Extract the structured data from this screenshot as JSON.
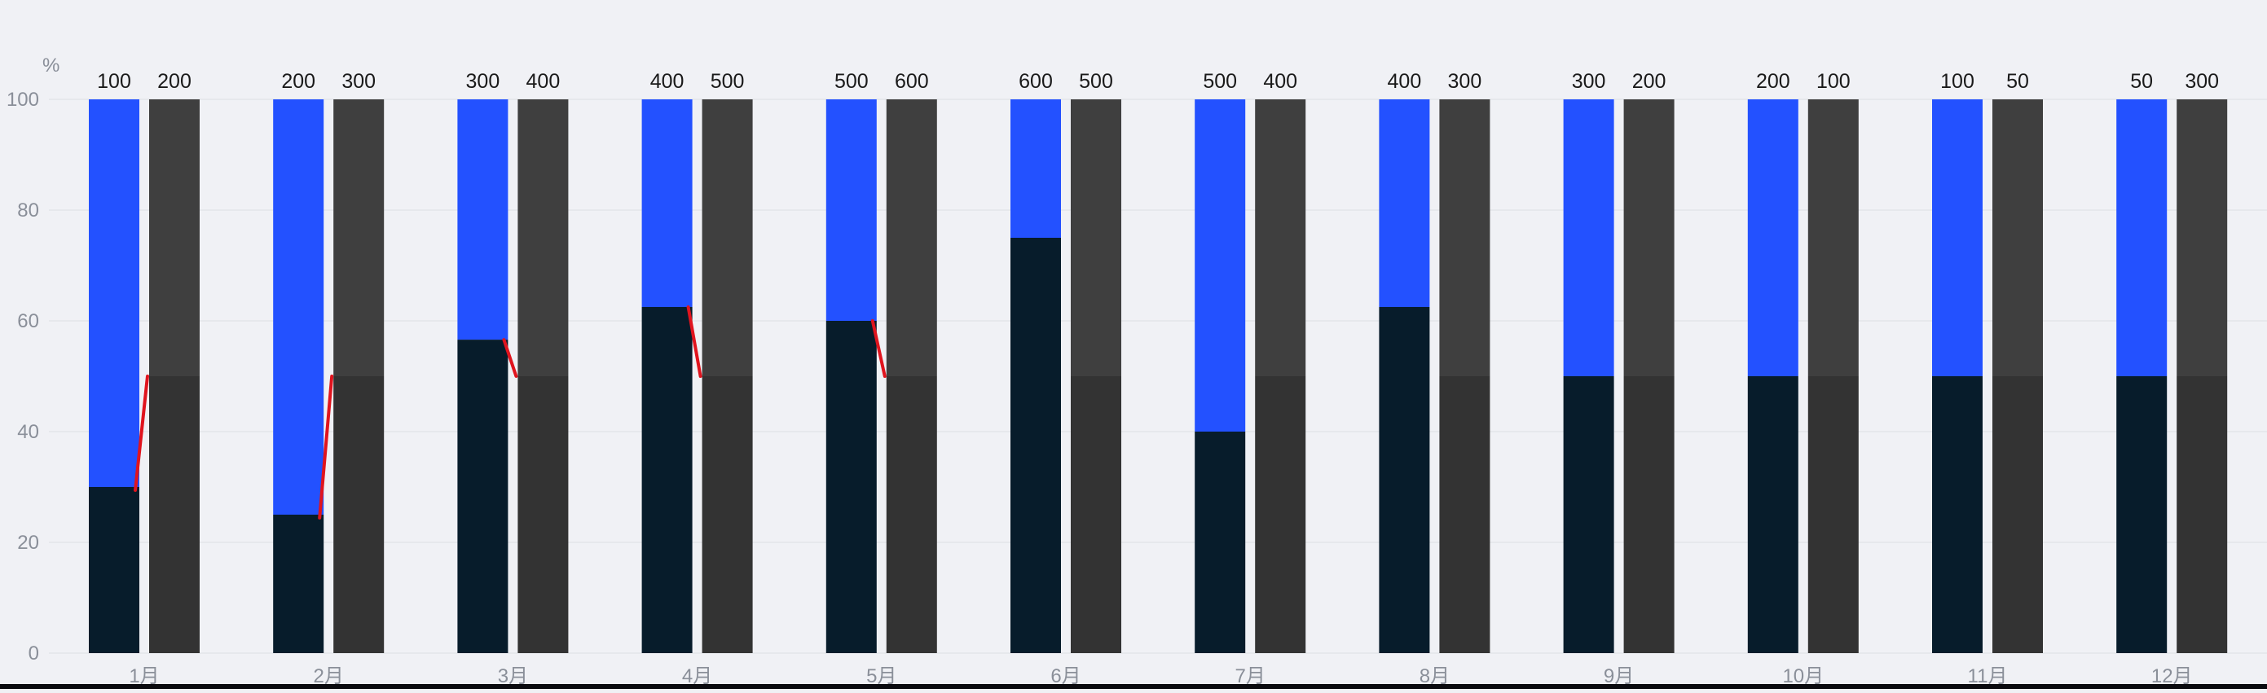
{
  "chart_data": {
    "type": "bar",
    "stacked_percent": true,
    "unit_label": "%",
    "ylim": [
      0,
      100
    ],
    "yticks": [
      0,
      20,
      40,
      60,
      80,
      100
    ],
    "grid": true,
    "categories": [
      "1月",
      "2月",
      "3月",
      "4月",
      "5月",
      "6月",
      "7月",
      "8月",
      "9月",
      "10月",
      "11月",
      "12月"
    ],
    "series": [
      {
        "group": "left",
        "top_labels": [
          "100",
          "200",
          "300",
          "400",
          "500",
          "600",
          "500",
          "400",
          "300",
          "200",
          "100",
          "50"
        ],
        "bottom_percent": [
          30,
          25,
          56.6,
          62.5,
          60,
          75,
          40,
          62.5,
          50,
          50,
          50,
          50
        ],
        "bottom_color": "#071c2b",
        "top_color": "#2351ff"
      },
      {
        "group": "right",
        "top_labels": [
          "200",
          "300",
          "400",
          "500",
          "600",
          "500",
          "400",
          "300",
          "200",
          "100",
          "50",
          "300"
        ],
        "bottom_percent": [
          50,
          50,
          50,
          50,
          50,
          50,
          50,
          50,
          50,
          50,
          50,
          50
        ],
        "bottom_color": "#333333",
        "top_color": "#3f3f3f"
      }
    ],
    "connector_color": "#e0141e",
    "connector_months": [
      "1月",
      "2月",
      "3月",
      "4月",
      "5月"
    ]
  }
}
